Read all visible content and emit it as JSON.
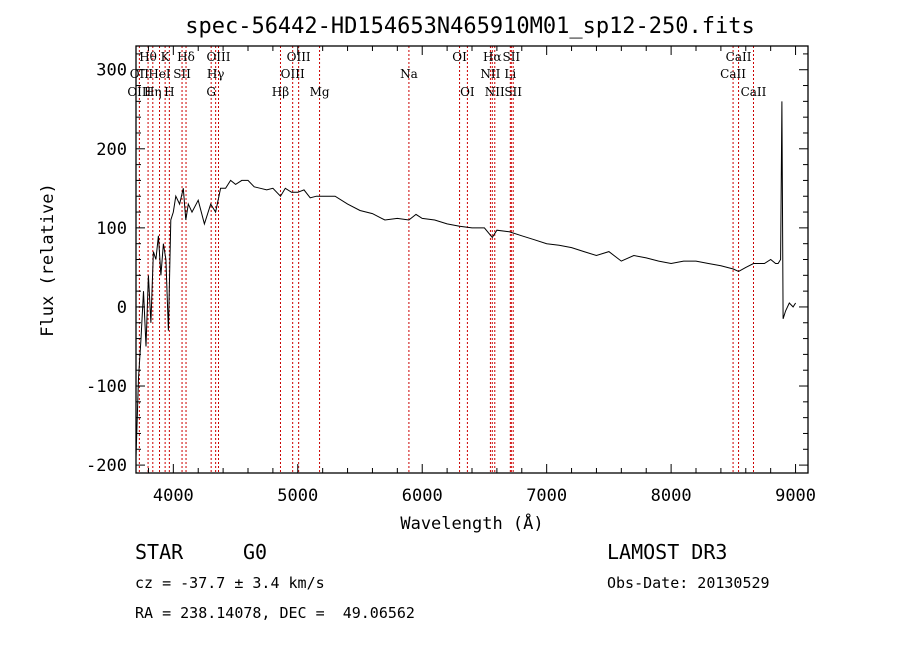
{
  "chart_data": {
    "type": "line",
    "title": "spec-56442-HD154653N465910M01_sp12-250.fits",
    "xlabel": "Wavelength (Å)",
    "ylabel": "Flux (relative)",
    "xlim": [
      3700,
      9100
    ],
    "ylim": [
      -210,
      330
    ],
    "x_ticks": [
      4000,
      5000,
      6000,
      7000,
      8000,
      9000
    ],
    "y_ticks": [
      -200,
      -100,
      0,
      100,
      200,
      300
    ],
    "x_tick_labels": [
      "4000",
      "5000",
      "6000",
      "7000",
      "8000",
      "9000"
    ],
    "y_tick_labels": [
      "-200",
      "-100",
      "0",
      "100",
      "200",
      "300"
    ],
    "series": [
      {
        "name": "spectrum",
        "color": "#000000",
        "x": [
          3700,
          3720,
          3740,
          3760,
          3780,
          3800,
          3820,
          3840,
          3860,
          3880,
          3900,
          3920,
          3940,
          3960,
          3980,
          4000,
          4020,
          4050,
          4080,
          4100,
          4120,
          4150,
          4200,
          4250,
          4300,
          4340,
          4380,
          4420,
          4460,
          4500,
          4550,
          4600,
          4650,
          4700,
          4750,
          4800,
          4861,
          4900,
          4950,
          5000,
          5050,
          5100,
          5150,
          5200,
          5300,
          5400,
          5500,
          5600,
          5700,
          5800,
          5893,
          5950,
          6000,
          6100,
          6200,
          6300,
          6400,
          6500,
          6563,
          6600,
          6700,
          6800,
          6900,
          7000,
          7100,
          7200,
          7300,
          7400,
          7500,
          7600,
          7700,
          7800,
          7900,
          8000,
          8100,
          8200,
          8300,
          8400,
          8500,
          8542,
          8600,
          8662,
          8700,
          8750,
          8800,
          8840,
          8860,
          8880,
          8890,
          8900,
          8920,
          8950,
          8980,
          9000
        ],
        "y": [
          -190,
          -90,
          -40,
          20,
          -50,
          40,
          -20,
          70,
          60,
          90,
          40,
          80,
          60,
          -30,
          110,
          120,
          140,
          130,
          150,
          110,
          130,
          120,
          135,
          105,
          130,
          120,
          150,
          150,
          160,
          155,
          160,
          160,
          152,
          150,
          148,
          150,
          140,
          150,
          145,
          145,
          148,
          138,
          140,
          140,
          140,
          130,
          122,
          118,
          110,
          112,
          110,
          117,
          112,
          110,
          105,
          102,
          100,
          100,
          88,
          97,
          95,
          90,
          85,
          80,
          78,
          75,
          70,
          65,
          70,
          58,
          65,
          62,
          58,
          55,
          58,
          58,
          55,
          52,
          48,
          45,
          50,
          55,
          55,
          55,
          60,
          55,
          55,
          60,
          260,
          -15,
          -5,
          5,
          0,
          5
        ]
      }
    ],
    "spectral_lines": [
      {
        "label": "Hθ",
        "wave": 3797,
        "row": 1
      },
      {
        "label": "OII",
        "wave": 3727,
        "row": 2
      },
      {
        "label": "OIII",
        "wave": 3727,
        "row": 3
      },
      {
        "label": "K",
        "wave": 3934,
        "row": 1
      },
      {
        "label": "HeI",
        "wave": 3889,
        "row": 2
      },
      {
        "label": "Hη",
        "wave": 3835,
        "row": 3
      },
      {
        "label": "SII",
        "wave": 4070,
        "row": 2
      },
      {
        "label": "H",
        "wave": 3968,
        "row": 3
      },
      {
        "label": "Hδ",
        "wave": 4102,
        "row": 1
      },
      {
        "label": "OIII",
        "wave": 4363,
        "row": 1
      },
      {
        "label": "Hγ",
        "wave": 4340,
        "row": 2
      },
      {
        "label": "G",
        "wave": 4304,
        "row": 3
      },
      {
        "label": "Hβ",
        "wave": 4861,
        "row": 3
      },
      {
        "label": "OIII",
        "wave": 5007,
        "row": 1
      },
      {
        "label": "OIII",
        "wave": 4959,
        "row": 2
      },
      {
        "label": "Mg",
        "wave": 5175,
        "row": 3
      },
      {
        "label": "Na",
        "wave": 5893,
        "row": 2
      },
      {
        "label": "OI",
        "wave": 6300,
        "row": 1
      },
      {
        "label": "OI",
        "wave": 6363,
        "row": 3
      },
      {
        "label": "Hα",
        "wave": 6563,
        "row": 1
      },
      {
        "label": "NII",
        "wave": 6548,
        "row": 2
      },
      {
        "label": "NII",
        "wave": 6583,
        "row": 3
      },
      {
        "label": "SII",
        "wave": 6716,
        "row": 1
      },
      {
        "label": "Li",
        "wave": 6708,
        "row": 2
      },
      {
        "label": "SII",
        "wave": 6731,
        "row": 3
      },
      {
        "label": "CaII",
        "wave": 8542,
        "row": 1
      },
      {
        "label": "CaII",
        "wave": 8498,
        "row": 2
      },
      {
        "label": "CaII",
        "wave": 8662,
        "row": 3
      }
    ],
    "line_color": "#cc0000"
  },
  "info": {
    "class": "STAR",
    "subclass": "G0",
    "survey": "LAMOST DR3",
    "cz": "cz = -37.7 ± 3.4 km/s",
    "obs_date": "Obs-Date: 20130529",
    "coords": "RA = 238.14078, DEC =  49.06562"
  }
}
